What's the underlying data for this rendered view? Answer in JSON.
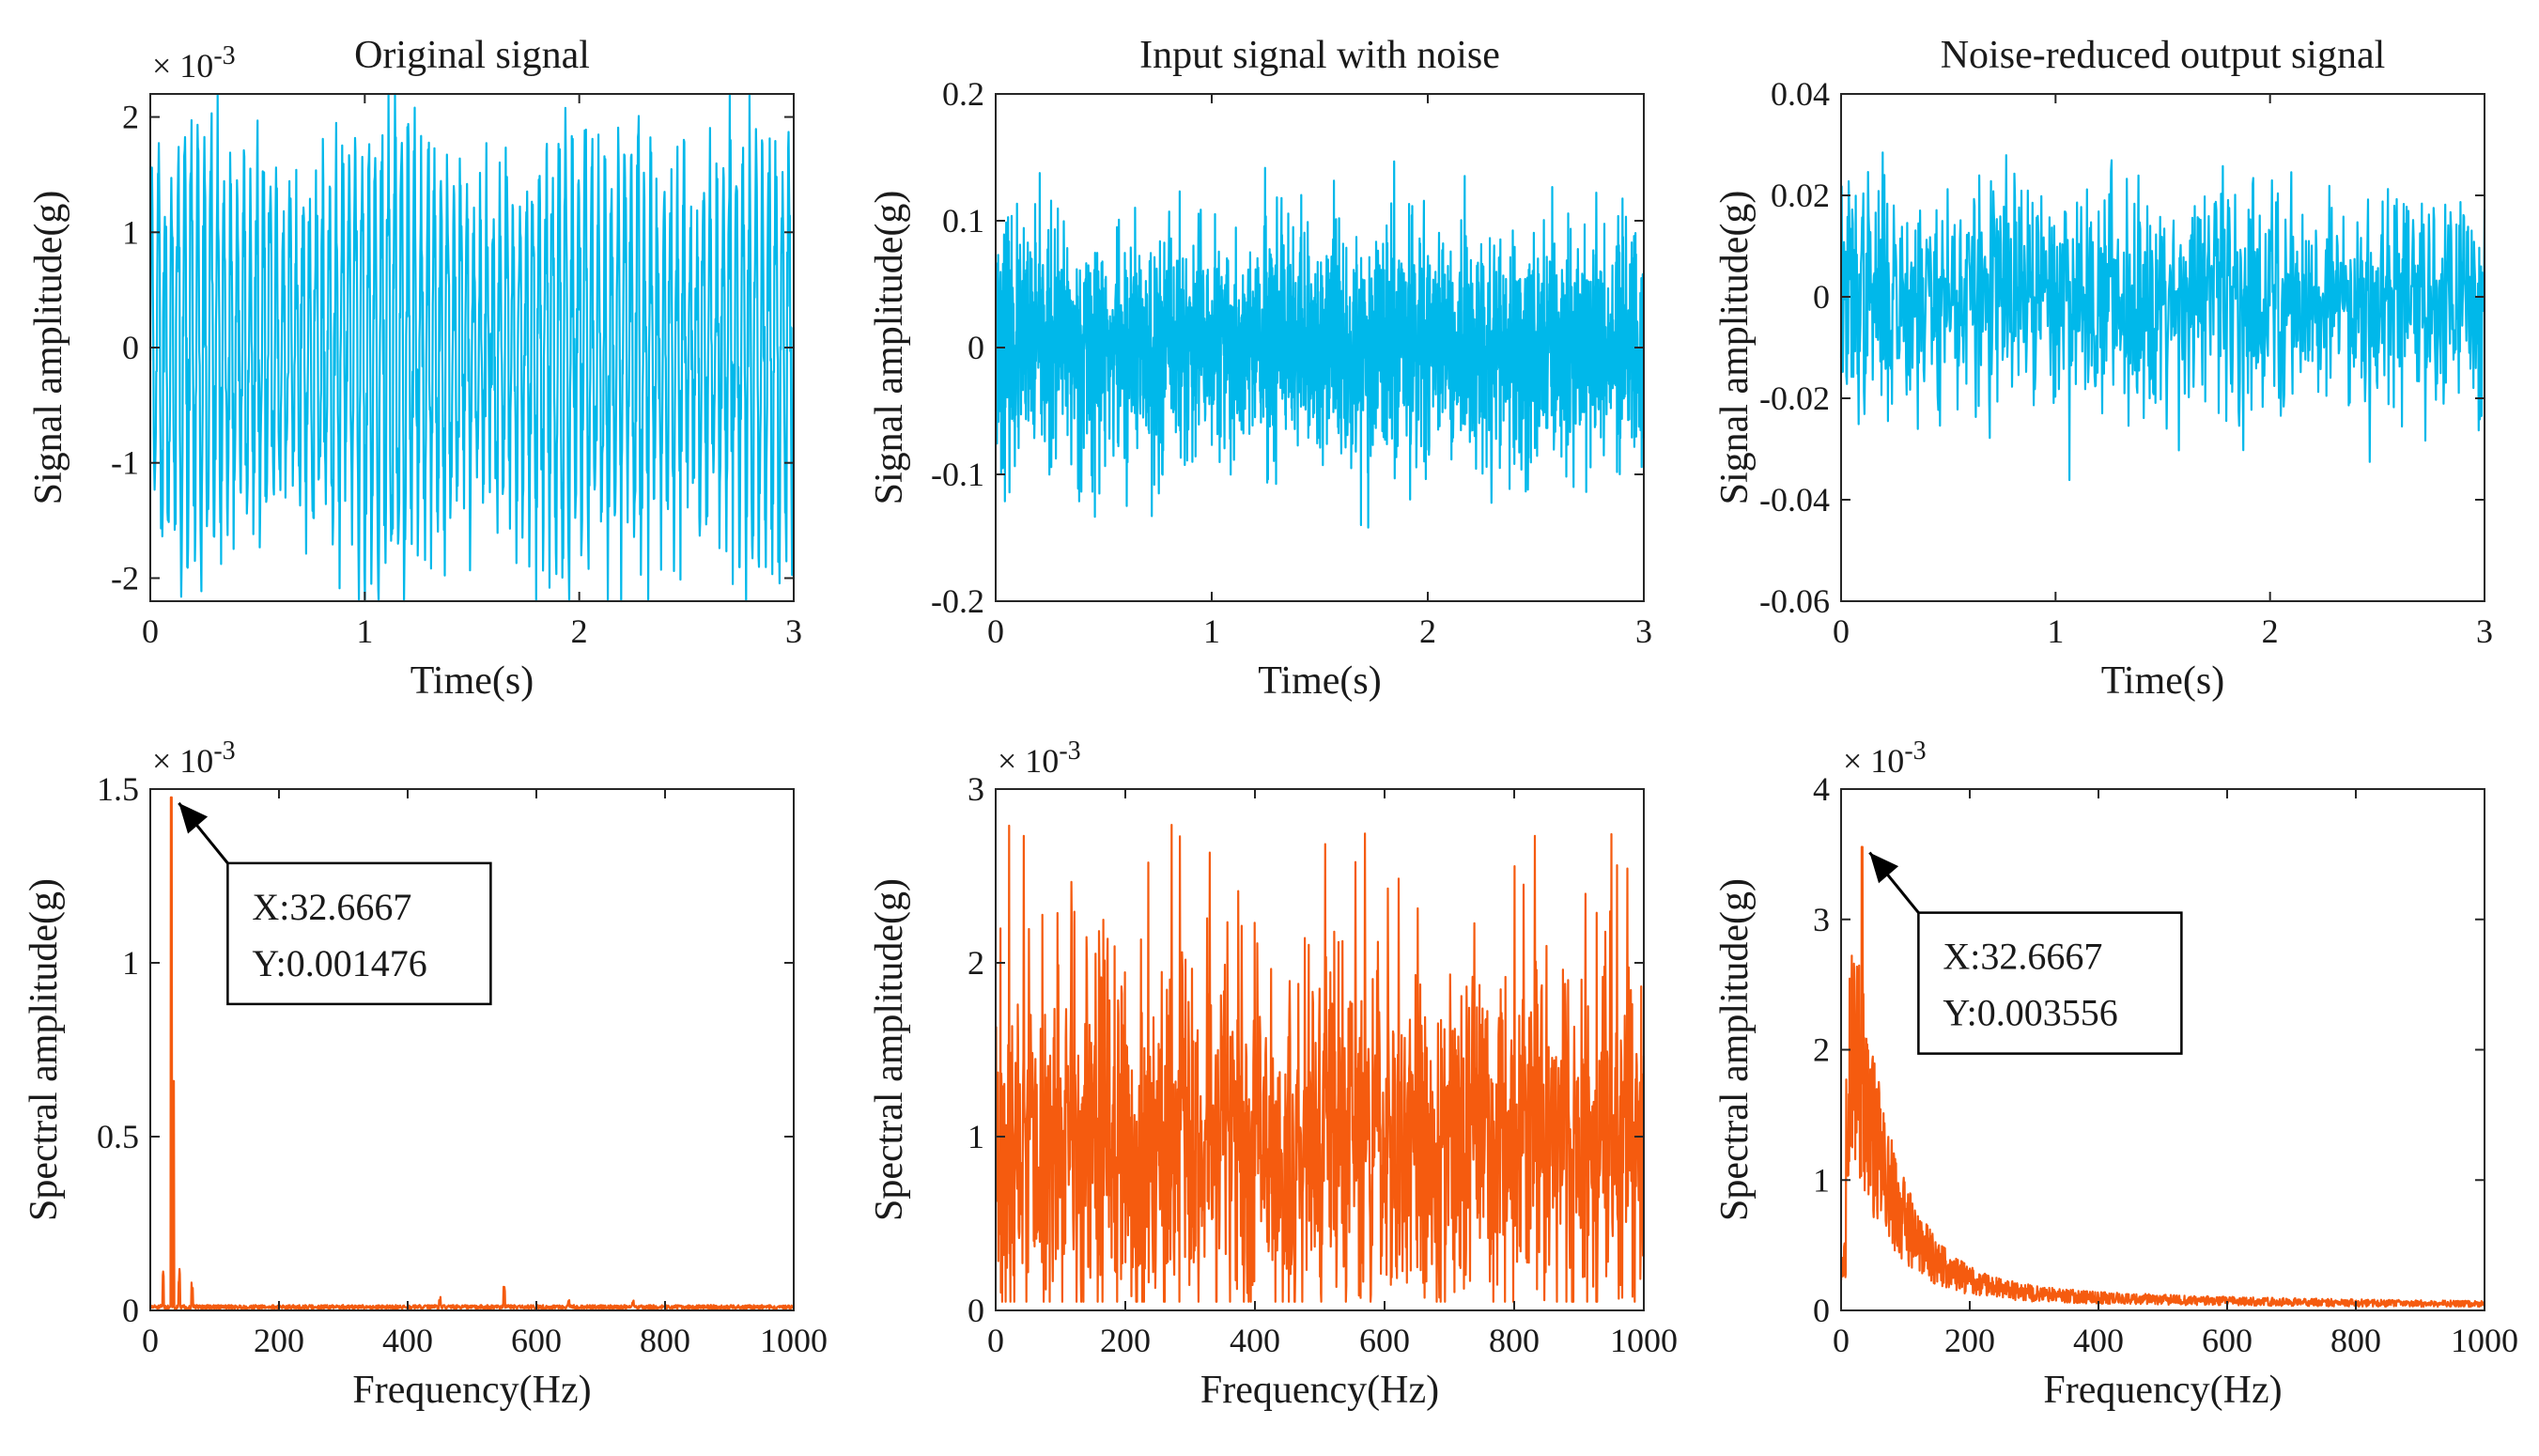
{
  "colors": {
    "time_series": "#00b8ea",
    "spectrum": "#f55b0f",
    "axes": "#262626",
    "annotation_box": "#000000"
  },
  "chart_data": [
    {
      "type": "line",
      "title": "Original signal",
      "xlabel": "Time(s)",
      "ylabel": "Signal amplitude(g)",
      "xlim": [
        0,
        3
      ],
      "ylim": [
        -0.0022,
        0.0022
      ],
      "x_ticks": [
        0,
        1,
        2,
        3
      ],
      "x_tick_labels": [
        "0",
        "1",
        "2",
        "3"
      ],
      "y_ticks": [
        -0.002,
        -0.001,
        0,
        0.001,
        0.002
      ],
      "y_tick_labels": [
        "-2",
        "-1",
        "0",
        "1",
        "2"
      ],
      "exponent_label": "× 10-3",
      "exponent_base": "× 10",
      "exponent_power": "-3",
      "signal": {
        "kind": "periodic",
        "amplitude": 0.0016,
        "noise": 0.0004,
        "points": 1500,
        "seed": 11
      }
    },
    {
      "type": "line",
      "title": "Input signal with noise",
      "xlabel": "Time(s)",
      "ylabel": "Signal amplitude(g)",
      "xlim": [
        0,
        3
      ],
      "ylim": [
        -0.2,
        0.2
      ],
      "x_ticks": [
        0,
        1,
        2,
        3
      ],
      "x_tick_labels": [
        "0",
        "1",
        "2",
        "3"
      ],
      "y_ticks": [
        -0.2,
        -0.1,
        0,
        0.1,
        0.2
      ],
      "y_tick_labels": [
        "-0.2",
        "-0.1",
        "0",
        "0.1",
        "0.2"
      ],
      "signal": {
        "kind": "noise",
        "amplitude": 0.001,
        "noise": 0.045,
        "points": 2400,
        "seed": 23
      }
    },
    {
      "type": "line",
      "title": "Noise-reduced output signal",
      "xlabel": "Time(s)",
      "ylabel": "Signal amplitude(g)",
      "xlim": [
        0,
        3
      ],
      "ylim": [
        -0.06,
        0.04
      ],
      "x_ticks": [
        0,
        1,
        2,
        3
      ],
      "x_tick_labels": [
        "0",
        "1",
        "2",
        "3"
      ],
      "y_ticks": [
        -0.06,
        -0.04,
        -0.02,
        0,
        0.02,
        0.04
      ],
      "y_tick_labels": [
        "-0.06",
        "-0.04",
        "-0.02",
        "0",
        "0.02",
        "0.04"
      ],
      "signal": {
        "kind": "noise",
        "amplitude": 0.002,
        "noise": 0.011,
        "points": 1100,
        "seed": 37
      }
    },
    {
      "type": "line",
      "title": "",
      "xlabel": "Frequency(Hz)",
      "ylabel": "Spectral amplitude(g)",
      "xlim": [
        0,
        1000
      ],
      "ylim": [
        0,
        0.0015
      ],
      "x_ticks": [
        0,
        200,
        400,
        600,
        800,
        1000
      ],
      "x_tick_labels": [
        "0",
        "200",
        "400",
        "600",
        "800",
        "1000"
      ],
      "y_ticks": [
        0,
        0.0005,
        0.001,
        0.0015
      ],
      "y_tick_labels": [
        "0",
        "0.5",
        "1",
        "1.5"
      ],
      "exponent_label": "× 10-3",
      "exponent_base": "× 10",
      "exponent_power": "-3",
      "peak": {
        "x": 32.6667,
        "y": 0.001476
      },
      "annotation": {
        "line1": "X:32.6667",
        "line2": "Y:0.001476"
      },
      "spectrum": {
        "kind": "sparse",
        "floor": 1.2e-05,
        "points": 1500,
        "seed": 51,
        "extra_peaks": [
          [
            20,
            0.00014
          ],
          [
            45,
            0.00012
          ],
          [
            65,
            8e-05
          ],
          [
            450,
            4e-05
          ],
          [
            550,
            7e-05
          ],
          [
            650,
            3e-05
          ],
          [
            750,
            3e-05
          ]
        ]
      }
    },
    {
      "type": "line",
      "title": "",
      "xlabel": "Frequency(Hz)",
      "ylabel": "Spectral amplitude(g)",
      "xlim": [
        0,
        1000
      ],
      "ylim": [
        0,
        0.003
      ],
      "x_ticks": [
        0,
        200,
        400,
        600,
        800,
        1000
      ],
      "x_tick_labels": [
        "0",
        "200",
        "400",
        "600",
        "800",
        "1000"
      ],
      "y_ticks": [
        0,
        0.001,
        0.002,
        0.003
      ],
      "y_tick_labels": [
        "0",
        "1",
        "2",
        "3"
      ],
      "exponent_label": "× 10-3",
      "exponent_base": "× 10",
      "exponent_power": "-3",
      "spectrum": {
        "kind": "dense",
        "mean": 0.00095,
        "spread": 0.0009,
        "points": 1500,
        "seed": 73
      }
    },
    {
      "type": "line",
      "title": "",
      "xlabel": "Frequency(Hz)",
      "ylabel": "Spectral amplitude(g)",
      "xlim": [
        0,
        1000
      ],
      "ylim": [
        0,
        0.004
      ],
      "x_ticks": [
        0,
        200,
        400,
        600,
        800,
        1000
      ],
      "x_tick_labels": [
        "0",
        "200",
        "400",
        "600",
        "800",
        "1000"
      ],
      "y_ticks": [
        0,
        0.001,
        0.002,
        0.003,
        0.004
      ],
      "y_tick_labels": [
        "0",
        "1",
        "2",
        "3",
        "4"
      ],
      "exponent_label": "× 10-3",
      "exponent_base": "× 10",
      "exponent_power": "-3",
      "peak": {
        "x": 32.6667,
        "y": 0.003556
      },
      "annotation": {
        "line1": "X:32.6667",
        "line2": "Y:0.003556"
      },
      "spectrum": {
        "kind": "decay",
        "floor": 6e-05,
        "points": 1500,
        "seed": 97
      }
    }
  ]
}
